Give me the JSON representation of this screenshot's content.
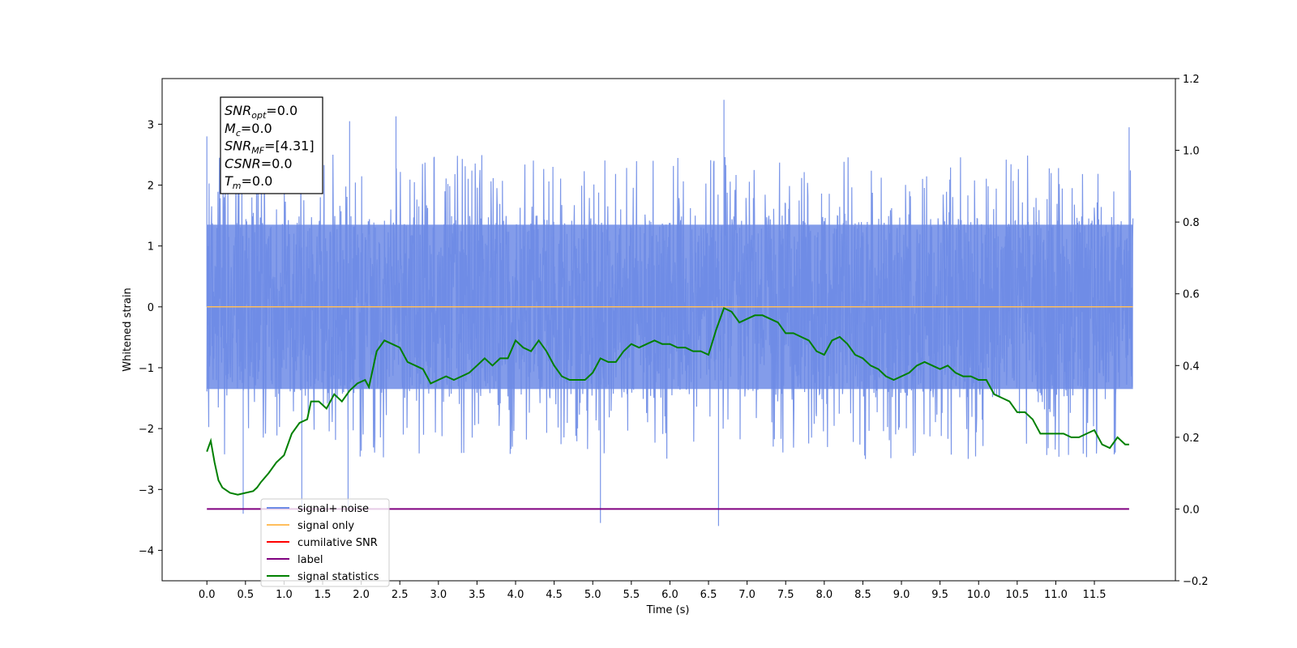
{
  "chart_data": {
    "type": "line",
    "title": "",
    "xlabel": "Time (s)",
    "ylabel": "Whitened strain",
    "ylabel_right": "",
    "xlim": [
      -0.58,
      12.55
    ],
    "ylim": [
      -4.5,
      3.75
    ],
    "ylim_right": [
      -0.2,
      1.2
    ],
    "x_ticks": [
      0.0,
      0.5,
      1.0,
      1.5,
      2.0,
      2.5,
      3.0,
      3.5,
      4.0,
      4.5,
      5.0,
      5.5,
      6.0,
      6.5,
      7.0,
      7.5,
      8.0,
      8.5,
      9.0,
      9.5,
      10.0,
      10.5,
      11.0,
      11.5
    ],
    "x_tick_labels": [
      "0.0",
      "0.5",
      "1.0",
      "1.5",
      "2.0",
      "2.5",
      "3.0",
      "3.5",
      "4.0",
      "4.5",
      "5.0",
      "5.5",
      "6.0",
      "6.5",
      "7.0",
      "7.5",
      "8.0",
      "8.5",
      "9.0",
      "9.5",
      "10.0",
      "10.5",
      "11.0",
      "11.5"
    ],
    "y_ticks": [
      -4,
      -3,
      -2,
      -1,
      0,
      1,
      2,
      3
    ],
    "y_tick_labels": [
      "−4",
      "−3",
      "−2",
      "−1",
      "0",
      "1",
      "2",
      "3"
    ],
    "y_right_ticks": [
      -0.2,
      0.0,
      0.2,
      0.4,
      0.6,
      0.8,
      1.0,
      1.2
    ],
    "y_right_tick_labels": [
      "−0.2",
      "0.0",
      "0.2",
      "0.4",
      "0.6",
      "0.8",
      "1.0",
      "1.2"
    ],
    "grid": false,
    "legend_position": "lower-left",
    "series": [
      {
        "name": "signal+ noise",
        "color": "#6d8be6",
        "axis": "left",
        "kind": "noise-band",
        "x_range": [
          0.0,
          12.0
        ],
        "band": [
          -1.5,
          1.5
        ],
        "spike_max": [
          3.4,
          3.13,
          3.05,
          2.95,
          2.8
        ],
        "spike_max_x": [
          6.7,
          2.45,
          1.85,
          11.95,
          0.0
        ],
        "spike_min": [
          -3.6,
          -3.55,
          -3.4,
          -3.35,
          -3.3
        ],
        "spike_min_x": [
          6.63,
          5.1,
          0.47,
          1.23,
          1.83
        ]
      },
      {
        "name": "signal only",
        "color": "#ffbe5c",
        "axis": "left",
        "x": [
          0.0,
          12.0
        ],
        "y": [
          0.0,
          0.0
        ]
      },
      {
        "name": "cumilative SNR",
        "color": "#ff0000",
        "axis": "left",
        "x": [],
        "y": []
      },
      {
        "name": "label",
        "color": "#800080",
        "axis": "right",
        "x": [
          0.0,
          11.95
        ],
        "y": [
          0.0,
          0.0
        ]
      },
      {
        "name": "signal statistics",
        "color": "#008000",
        "axis": "right",
        "x": [
          0.0,
          0.05,
          0.1,
          0.15,
          0.2,
          0.3,
          0.4,
          0.5,
          0.6,
          0.65,
          0.7,
          0.8,
          0.9,
          1.0,
          1.1,
          1.2,
          1.3,
          1.35,
          1.45,
          1.55,
          1.65,
          1.75,
          1.85,
          1.95,
          2.05,
          2.1,
          2.2,
          2.3,
          2.4,
          2.5,
          2.6,
          2.7,
          2.8,
          2.9,
          3.0,
          3.1,
          3.2,
          3.3,
          3.4,
          3.5,
          3.6,
          3.7,
          3.8,
          3.9,
          4.0,
          4.1,
          4.2,
          4.3,
          4.4,
          4.5,
          4.6,
          4.7,
          4.8,
          4.9,
          5.0,
          5.1,
          5.2,
          5.3,
          5.4,
          5.5,
          5.6,
          5.7,
          5.8,
          5.9,
          6.0,
          6.1,
          6.2,
          6.3,
          6.4,
          6.5,
          6.6,
          6.7,
          6.8,
          6.9,
          7.0,
          7.1,
          7.2,
          7.3,
          7.4,
          7.5,
          7.6,
          7.7,
          7.8,
          7.9,
          8.0,
          8.1,
          8.2,
          8.3,
          8.4,
          8.5,
          8.6,
          8.7,
          8.8,
          8.9,
          9.0,
          9.1,
          9.2,
          9.3,
          9.4,
          9.5,
          9.6,
          9.7,
          9.8,
          9.9,
          10.0,
          10.1,
          10.2,
          10.3,
          10.4,
          10.5,
          10.6,
          10.7,
          10.8,
          10.9,
          11.0,
          11.1,
          11.2,
          11.3,
          11.4,
          11.5,
          11.6,
          11.7,
          11.8,
          11.9,
          11.95
        ],
        "y": [
          0.16,
          0.19,
          0.13,
          0.08,
          0.06,
          0.045,
          0.04,
          0.045,
          0.05,
          0.06,
          0.075,
          0.1,
          0.13,
          0.15,
          0.21,
          0.24,
          0.25,
          0.3,
          0.3,
          0.28,
          0.32,
          0.3,
          0.33,
          0.35,
          0.36,
          0.34,
          0.44,
          0.47,
          0.46,
          0.45,
          0.41,
          0.4,
          0.39,
          0.35,
          0.36,
          0.37,
          0.36,
          0.37,
          0.38,
          0.4,
          0.42,
          0.4,
          0.42,
          0.42,
          0.47,
          0.45,
          0.44,
          0.47,
          0.44,
          0.4,
          0.37,
          0.36,
          0.36,
          0.36,
          0.38,
          0.42,
          0.41,
          0.41,
          0.44,
          0.46,
          0.45,
          0.46,
          0.47,
          0.46,
          0.46,
          0.45,
          0.45,
          0.44,
          0.44,
          0.43,
          0.5,
          0.56,
          0.55,
          0.52,
          0.53,
          0.54,
          0.54,
          0.53,
          0.52,
          0.49,
          0.49,
          0.48,
          0.47,
          0.44,
          0.43,
          0.47,
          0.48,
          0.46,
          0.43,
          0.42,
          0.4,
          0.39,
          0.37,
          0.36,
          0.37,
          0.38,
          0.4,
          0.41,
          0.4,
          0.39,
          0.4,
          0.38,
          0.37,
          0.37,
          0.36,
          0.36,
          0.32,
          0.31,
          0.3,
          0.27,
          0.27,
          0.25,
          0.21,
          0.21,
          0.21,
          0.21,
          0.2,
          0.2,
          0.21,
          0.22,
          0.18,
          0.17,
          0.2,
          0.18,
          0.18
        ]
      }
    ]
  },
  "info_box": {
    "lines": [
      {
        "base": "SNR",
        "sub": "opt",
        "value": "=0.0"
      },
      {
        "base": "M",
        "sub": "c",
        "value": "=0.0"
      },
      {
        "base": "SNR",
        "sub": "MF",
        "value": "=[4.31]"
      },
      {
        "base": "CSNR",
        "sub": "",
        "value": "=0.0"
      },
      {
        "base": "T",
        "sub": "m",
        "value": "=0.0"
      }
    ]
  }
}
